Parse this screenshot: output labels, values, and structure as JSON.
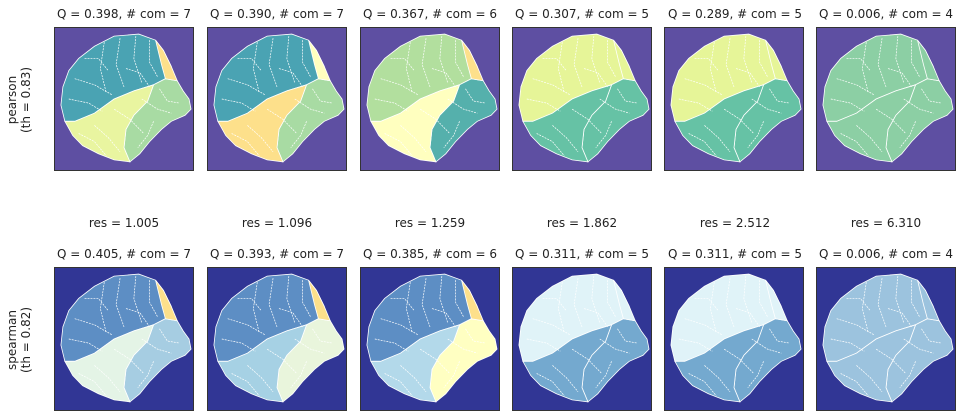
{
  "rows": [
    {
      "label_line1": "pearson",
      "label_line2": "(th = 0.83)",
      "bg_color": "#5e4fa2",
      "panels": [
        {
          "title": "Q = 0.398,  # com = 7",
          "colors": [
            "#4aa3b3",
            "#a8dba3",
            "#e9f5a0",
            "#fde08b"
          ]
        },
        {
          "title": "Q = 0.390,  # com = 7",
          "colors": [
            "#4aa3b3",
            "#a8dba3",
            "#fde08b",
            "#ffffbf"
          ]
        },
        {
          "title": "Q = 0.367,  # com = 6",
          "colors": [
            "#b2df9e",
            "#55b0ac",
            "#ffffbf",
            "#fde08b"
          ]
        },
        {
          "title": "Q = 0.307,  # com = 5",
          "colors": [
            "#e6f598",
            "#66c2a5",
            "#66c2a5",
            "#e6f598"
          ]
        },
        {
          "title": "Q = 0.289,  # com = 5",
          "colors": [
            "#e6f598",
            "#66c2a5",
            "#66c2a5",
            "#e6f598"
          ]
        },
        {
          "title": "Q = 0.006,  # com = 4",
          "colors": [
            "#8ccfa4",
            "#8ccfa4",
            "#8ccfa4",
            "#8ccfa4"
          ]
        }
      ]
    },
    {
      "label_line1": "spearman",
      "label_line2": "(th = 0.82)",
      "bg_color": "#313695",
      "panels": [
        {
          "title": "Q = 0.405,  # com = 7",
          "colors": [
            "#5d8ec4",
            "#a6cde2",
            "#e4f4e6",
            "#fde08b"
          ]
        },
        {
          "title": "Q = 0.393,  # com = 7",
          "colors": [
            "#5d8ec4",
            "#e9f5dc",
            "#a6d1e4",
            "#fde08b"
          ]
        },
        {
          "title": "Q = 0.385,  # com = 6",
          "colors": [
            "#5d8ec4",
            "#ffffc2",
            "#b3d9ea",
            "#fde08b"
          ]
        },
        {
          "title": "Q = 0.311,  # com = 5",
          "colors": [
            "#e0f3f8",
            "#74a9cf",
            "#74a9cf",
            "#e0f3f8"
          ]
        },
        {
          "title": "Q = 0.311,  # com = 5",
          "colors": [
            "#e0f3f8",
            "#74a9cf",
            "#74a9cf",
            "#e0f3f8"
          ]
        },
        {
          "title": "Q = 0.006,  # com = 4",
          "colors": [
            "#9cc3de",
            "#9cc3de",
            "#9cc3de",
            "#9cc3de"
          ]
        }
      ]
    }
  ],
  "resolutions": [
    "res = 1.005",
    "res = 1.096",
    "res = 1.259",
    "res = 1.862",
    "res = 2.512",
    "res = 6.310"
  ]
}
